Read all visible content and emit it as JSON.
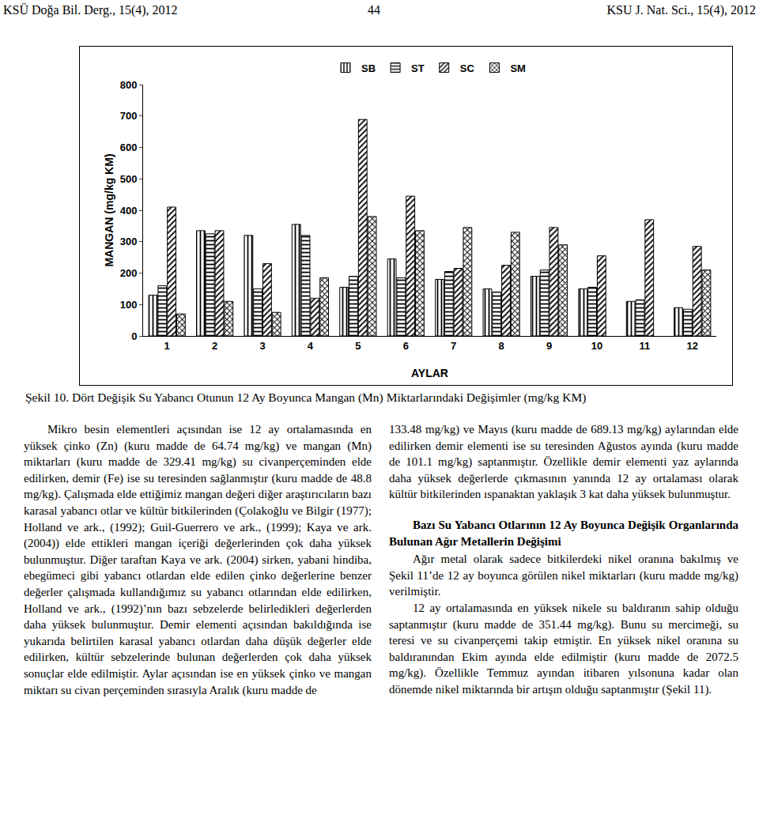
{
  "header": {
    "left": "KSÜ Doğa Bil. Derg., 15(4), 2012",
    "center": "44",
    "right": "KSU J. Nat. Sci., 15(4), 2012"
  },
  "chart_data": {
    "type": "bar",
    "x_label": "AYLAR",
    "y_label": "MANGAN (mg/kg KM)",
    "categories": [
      "1",
      "2",
      "3",
      "4",
      "5",
      "6",
      "7",
      "8",
      "9",
      "10",
      "11",
      "12"
    ],
    "series": [
      {
        "name": "SB",
        "color": "#000000",
        "values": [
          130,
          335,
          320,
          355,
          155,
          245,
          180,
          150,
          190,
          150,
          110,
          90
        ]
      },
      {
        "name": "ST",
        "color": "#000000",
        "values": [
          160,
          325,
          150,
          320,
          190,
          185,
          205,
          140,
          210,
          155,
          115,
          85
        ]
      },
      {
        "name": "SC",
        "color": "#000000",
        "values": [
          410,
          335,
          230,
          120,
          689,
          445,
          215,
          225,
          345,
          255,
          370,
          285
        ]
      },
      {
        "name": "SM",
        "color": "#000000",
        "values": [
          70,
          110,
          75,
          185,
          380,
          335,
          345,
          330,
          290,
          null,
          null,
          210
        ]
      }
    ],
    "ylim": [
      0,
      800
    ],
    "yticks": [
      0,
      100,
      200,
      300,
      400,
      500,
      600,
      700,
      800
    ],
    "grid": false,
    "legend": "top"
  },
  "caption": "Şekil 10. Dört Değişik Su Yabancı Otunun 12 Ay Boyunca Mangan (Mn) Miktarlarındaki Değişimler (mg/kg KM)",
  "left_column": [
    "Mikro besin elementleri açısından ise 12 ay ortalamasında en yüksek çinko (Zn) (kuru madde de 64.74 mg/kg) ve mangan (Mn) miktarları (kuru madde de 329.41 mg/kg) su civanperçeminden elde edilirken, demir (Fe) ise su teresinden sağlanmıştır (kuru madde de 48.8 mg/kg). Çalışmada elde ettiğimiz mangan değeri diğer araştırıcıların bazı karasal yabancı otlar ve kültür bitkilerinden (Çolakoğlu ve Bilgir (1977); Holland ve ark., (1992); Guil-Guerrero ve ark., (1999); Kaya ve ark. (2004)) elde ettikleri mangan içeriği değerlerinden çok daha yüksek bulunmuştur. Diğer taraftan Kaya ve ark. (2004) sirken, yabani hindiba, ebegümeci gibi yabancı otlardan elde edilen çinko değerlerine benzer değerler çalışmada kullandığımız su yabancı otlarından elde edilirken, Holland ve ark., (1992)’nın bazı sebzelerde belirledikleri değerlerden daha yüksek bulunmuştur. Demir elementi açısından bakıldığında ise yukarıda belirtilen karasal yabancı otlardan daha düşük değerler elde edilirken, kültür sebzelerinde bulunan değerlerden çok daha yüksek sonuçlar elde edilmiştir. Aylar açısından ise en yüksek çinko ve mangan miktarı su civan perçeminden sırasıyla Aralık (kuru madde de"
  ],
  "right_column": {
    "continuation": "133.48 mg/kg) ve Mayıs (kuru madde de 689.13 mg/kg) aylarından elde edilirken demir elementi ise su teresinden Ağustos ayında (kuru madde de 101.1 mg/kg) saptanmıştır. Özellikle demir elementi yaz aylarında daha yüksek değerlerde çıkmasının yanında 12 ay ortalaması olarak kültür bitkilerinden ıspanaktan yaklaşık 3 kat daha yüksek bulunmuştur.",
    "heading": "Bazı Su Yabancı Otlarının 12 Ay Boyunca Değişik Organlarında Bulunan Ağır Metallerin Değişimi",
    "paragraphs": [
      "Ağır metal olarak sadece bitkilerdeki nikel oranına bakılmış ve Şekil 11’de 12 ay boyunca görülen nikel miktarları (kuru madde mg/kg) verilmiştir.",
      "12 ay ortalamasında en yüksek nikele su baldıranın sahip olduğu saptanmıştır (kuru madde de 351.44 mg/kg). Bunu su mercimeği, su teresi ve su civanperçemi takip etmiştir. En yüksek nikel oranına su baldıranından Ekim ayında elde edilmiştir (kuru madde de 2072.5 mg/kg). Özellikle Temmuz ayından itibaren yılsonuna kadar olan dönemde nikel miktarında bir artışın olduğu saptanmıştır (Şekil 11)."
    ]
  }
}
